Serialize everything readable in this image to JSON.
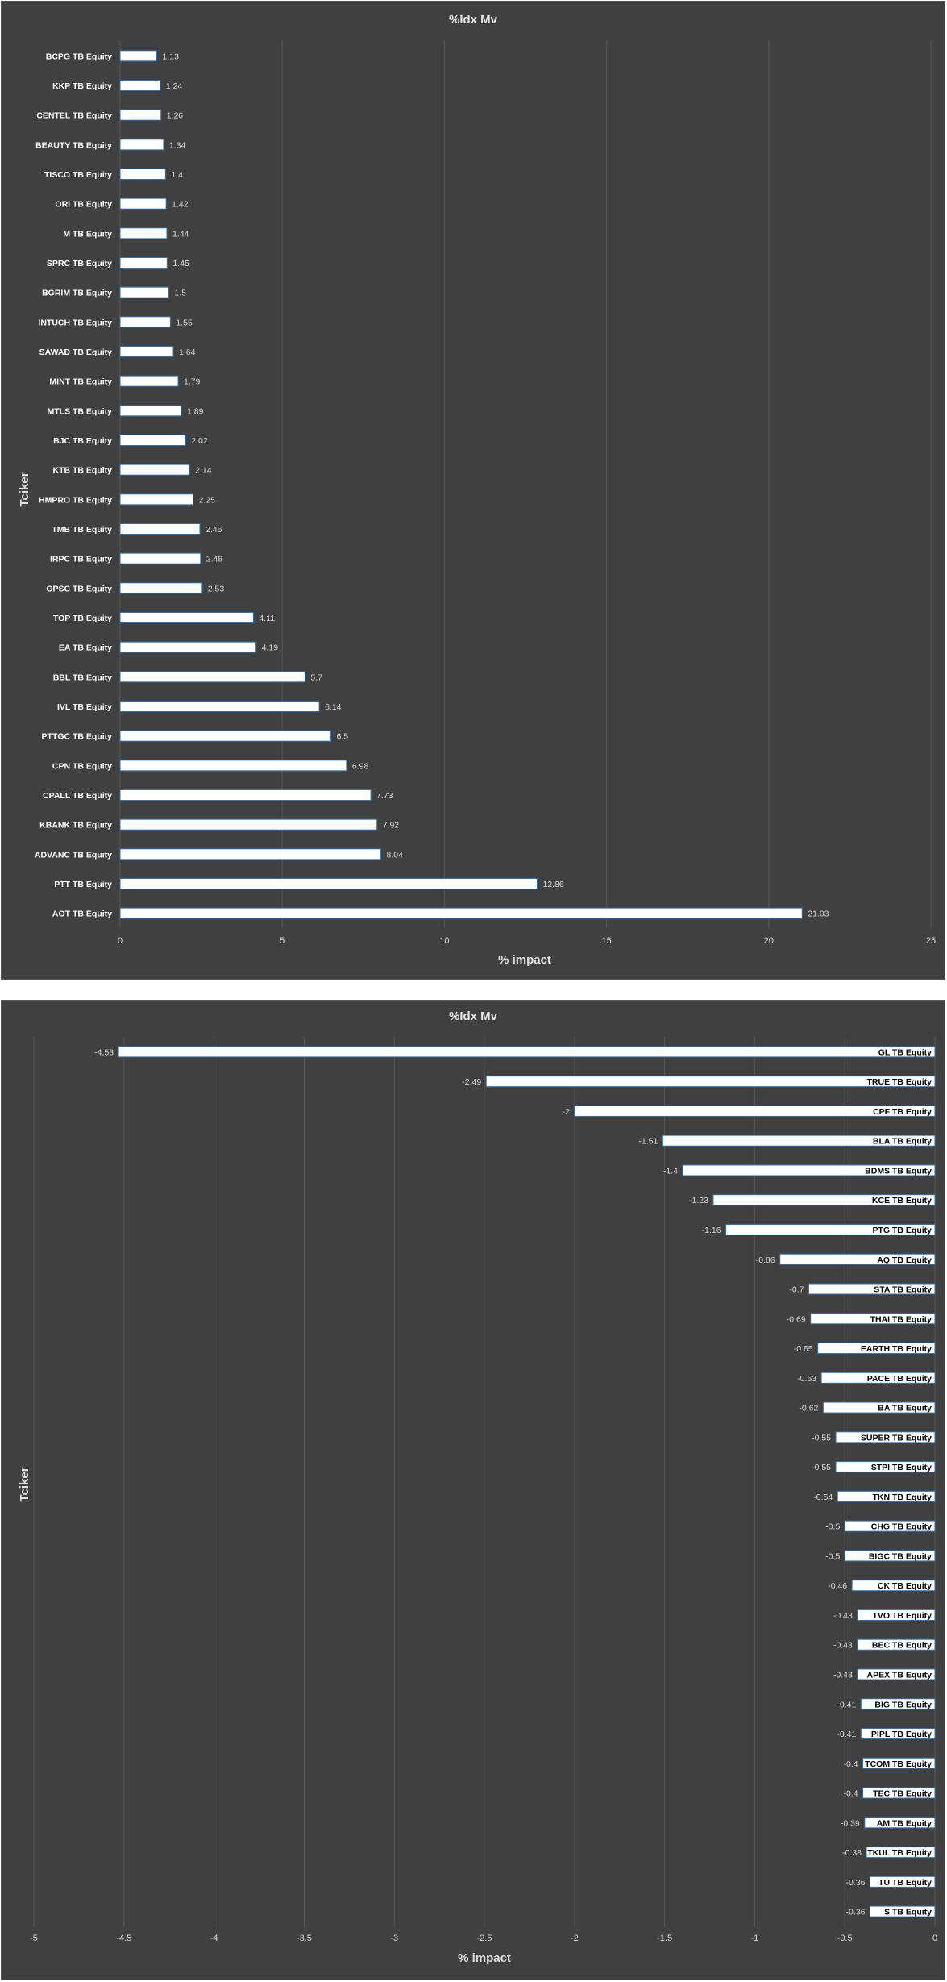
{
  "chart_data": [
    {
      "type": "bar",
      "orientation": "horizontal",
      "title": "%Idx Mv",
      "xlabel": "% impact",
      "ylabel": "Tciker",
      "xlim": [
        0,
        25
      ],
      "xticks": [
        0,
        5,
        10,
        15,
        20,
        25
      ],
      "grid": true,
      "legend": "none",
      "bar_color": "#ffffff",
      "bar_edge_color": "#2e75b6",
      "background": "#404040",
      "categories": [
        "BCPG TB Equity",
        "KKP TB Equity",
        "CENTEL TB Equity",
        "BEAUTY TB Equity",
        "TISCO TB Equity",
        "ORI TB Equity",
        "M TB Equity",
        "SPRC TB Equity",
        "BGRIM TB Equity",
        "INTUCH TB Equity",
        "SAWAD TB Equity",
        "MINT TB Equity",
        "MTLS TB Equity",
        "BJC TB Equity",
        "KTB TB Equity",
        "HMPRO TB Equity",
        "TMB TB Equity",
        "IRPC TB Equity",
        "GPSC TB Equity",
        "TOP TB Equity",
        "EA TB Equity",
        "BBL TB Equity",
        "IVL TB Equity",
        "PTTGC TB Equity",
        "CPN TB Equity",
        "CPALL TB Equity",
        "KBANK TB Equity",
        "ADVANC TB Equity",
        "PTT TB Equity",
        "AOT TB Equity"
      ],
      "values": [
        1.13,
        1.24,
        1.26,
        1.34,
        1.4,
        1.42,
        1.44,
        1.45,
        1.5,
        1.55,
        1.64,
        1.79,
        1.89,
        2.02,
        2.14,
        2.25,
        2.46,
        2.48,
        2.53,
        4.11,
        4.19,
        5.7,
        6.14,
        6.5,
        6.98,
        7.73,
        7.92,
        8.04,
        12.86,
        21.03
      ],
      "value_labels": [
        "1.13",
        "1.24",
        "1.26",
        "1.34",
        "1.4",
        "1.42",
        "1.44",
        "1.45",
        "1.5",
        "1.55",
        "1.64",
        "1.79",
        "1.89",
        "2.02",
        "2.14",
        "2.25",
        "2.46",
        "2.48",
        "2.53",
        "4.11",
        "4.19",
        "5.7",
        "6.14",
        "6.5",
        "6.98",
        "7.73",
        "7.92",
        "8.04",
        "12.86",
        "21.03"
      ]
    },
    {
      "type": "bar",
      "orientation": "horizontal",
      "title": "%Idx Mv",
      "xlabel": "% impact",
      "ylabel": "Tciker",
      "xlim": [
        -5,
        0
      ],
      "xticks": [
        -5,
        -4.5,
        -4,
        -3.5,
        -3,
        -2.5,
        -2,
        -1.5,
        -1,
        -0.5,
        0
      ],
      "grid": true,
      "legend": "none",
      "bar_color": "#ffffff",
      "bar_edge_color": "#2e75b6",
      "background": "#404040",
      "categories": [
        "GL TB Equity",
        "TRUE TB Equity",
        "CPF TB Equity",
        "BLA TB Equity",
        "BDMS TB Equity",
        "KCE TB Equity",
        "PTG TB Equity",
        "AQ TB Equity",
        "STA TB Equity",
        "THAI TB Equity",
        "EARTH TB Equity",
        "PACE TB Equity",
        "BA TB Equity",
        "SUPER TB Equity",
        "STPI TB Equity",
        "TKN TB Equity",
        "CHG TB Equity",
        "BIGC TB Equity",
        "CK TB Equity",
        "TVO TB Equity",
        "BEC TB Equity",
        "APEX TB Equity",
        "BIG TB Equity",
        "PIPL TB Equity",
        "TCOM TB Equity",
        "TEC TB Equity",
        "AM TB Equity",
        "TKUL TB Equity",
        "TU TB Equity",
        "S TB Equity"
      ],
      "values": [
        -4.53,
        -2.49,
        -2,
        -1.51,
        -1.4,
        -1.23,
        -1.16,
        -0.86,
        -0.7,
        -0.69,
        -0.65,
        -0.63,
        -0.62,
        -0.55,
        -0.55,
        -0.54,
        -0.5,
        -0.5,
        -0.46,
        -0.43,
        -0.43,
        -0.43,
        -0.41,
        -0.41,
        -0.4,
        -0.4,
        -0.39,
        -0.38,
        -0.36,
        -0.36
      ],
      "value_labels": [
        "-4.53",
        "-2.49",
        "-2",
        "-1.51",
        "-1.4",
        "-1.23",
        "-1.16",
        "-0.86",
        "-0.7",
        "-0.69",
        "-0.65",
        "-0.63",
        "-0.62",
        "-0.55",
        "-0.55",
        "-0.54",
        "-0.5",
        "-0.5",
        "-0.46",
        "-0.43",
        "-0.43",
        "-0.43",
        "-0.41",
        "-0.41",
        "-0.4",
        "-0.4",
        "-0.39",
        "-0.38",
        "-0.36",
        "-0.36"
      ]
    }
  ]
}
